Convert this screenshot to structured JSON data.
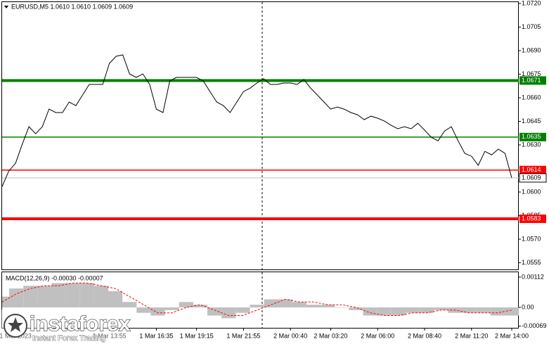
{
  "chart_data": [
    {
      "type": "line",
      "title": "EURUSD,M5  1.0610 1.0610 1.0609 1.0609",
      "color": "#000000",
      "grid": false,
      "categories": [
        null,
        null,
        "1 Mar 2023",
        null,
        null,
        null,
        null,
        null,
        null,
        null,
        null,
        null,
        null,
        null,
        null,
        null,
        "1 Mar 13:55",
        null,
        null,
        null,
        null,
        null,
        null,
        "1 Mar 16:35",
        null,
        null,
        null,
        null,
        null,
        "1 Mar 19:15",
        null,
        null,
        null,
        null,
        null,
        null,
        "1 Mar 21:55",
        null,
        null,
        null,
        null,
        null,
        null,
        "2 Mar 00:40",
        null,
        null,
        null,
        null,
        null,
        "2 Mar 03:20",
        null,
        null,
        null,
        null,
        null,
        null,
        "2 Mar 06:00",
        null,
        null,
        null,
        null,
        null,
        null,
        "2 Mar 08:40",
        null,
        null,
        null,
        null,
        null,
        null,
        "2 Mar 11:20",
        null,
        null,
        null,
        null,
        null,
        "2 Mar 14:00"
      ],
      "values": [
        1.06035,
        1.06134,
        1.06183,
        1.06304,
        1.06416,
        1.06371,
        1.06416,
        1.06528,
        1.06506,
        1.06506,
        1.06573,
        1.0655,
        1.06618,
        1.06685,
        1.06685,
        1.06685,
        1.06819,
        1.06864,
        1.06873,
        1.06752,
        1.0673,
        1.06752,
        1.06685,
        1.06528,
        1.06506,
        1.06707,
        1.0673,
        1.0673,
        1.0673,
        1.0673,
        1.06707,
        1.0664,
        1.06573,
        1.0655,
        1.06506,
        1.06573,
        1.0664,
        1.06662,
        1.06694,
        1.06721,
        1.06685,
        1.06685,
        1.06694,
        1.06694,
        1.06685,
        1.06716,
        1.06662,
        1.06618,
        1.06573,
        1.06528,
        1.06541,
        1.06528,
        1.06506,
        1.06492,
        1.06461,
        1.06483,
        1.0647,
        1.06452,
        1.06425,
        1.06403,
        1.06416,
        1.06403,
        1.06438,
        1.06394,
        1.06349,
        1.06326,
        1.06389,
        1.06416,
        1.06326,
        1.06246,
        1.06228,
        1.0617,
        1.06259,
        1.06237,
        1.06273,
        1.06246,
        1.0609
      ],
      "ylim": [
        1.05503,
        1.07209
      ],
      "yticks": [
        {
          "value": 1.072,
          "label": "1.0720"
        },
        1.0705,
        {
          "value": 1.069,
          "label": "1.0690"
        },
        1.0675,
        {
          "value": 1.066,
          "label": "1.0660"
        },
        1.0645,
        {
          "value": 1.063,
          "label": "1.0630"
        },
        {
          "value": 1.06,
          "label": "1.0600"
        },
        1.0585,
        {
          "value": 1.057,
          "label": "1.0570"
        },
        1.0555
      ],
      "levels": [
        {
          "value": 1.0671,
          "color": "#008000",
          "style": "thick"
        },
        {
          "value": 1.0635,
          "color": "#008000",
          "style": "thin"
        },
        {
          "value": 1.0614,
          "color": "#ff0000",
          "style": "thin"
        },
        {
          "value": 1.0583,
          "color": "#ff0000",
          "style": "thick"
        }
      ],
      "bid": 1.0609
    },
    {
      "type": "bar",
      "title": "MACD(12,26,9) -0.00030 -0.00007",
      "series": [
        {
          "type": "bar",
          "color": "#c0c0c0",
          "values": [
            0.0004,
            0.0007,
            0.0008,
            0.0008,
            0.0009,
            0.0009,
            0.0009,
            0.0008,
            0.0006,
            0.0002,
            -0.0002,
            -0.0003,
            -0.0001,
            0.0002,
            0.0001,
            -0.0003,
            -0.0004,
            -0.0002,
            0.0001,
            0.0003,
            0.0003,
            0.0002,
            0.0001,
            0.0001,
            0,
            -0.0001,
            -0.0003,
            -0.0003,
            -0.0003,
            -0.0002,
            -0.0002,
            -0.0001,
            -0.0002,
            -0.0002,
            -0.0002,
            -0.0003,
            -0.0003
          ]
        },
        {
          "type": "line",
          "color": "#ff0000",
          "values": [
            0.0002,
            0.0005,
            0.0007,
            0.0008,
            0.0008,
            0.0009,
            0.0009,
            0.0008,
            0.0007,
            0.0004,
            0.0001,
            -0.0002,
            -0.0002,
            0,
            0.0001,
            -0.0001,
            -0.0003,
            -0.0003,
            -0.0001,
            0.0001,
            0.0003,
            0.0002,
            0.0002,
            0.0001,
            0.0001,
            0,
            -0.0002,
            -0.0003,
            -0.0003,
            -0.0002,
            -0.0002,
            -0.0001,
            -0.0001,
            -0.0002,
            -0.0002,
            -0.0002,
            -0.0001
          ]
        }
      ],
      "ylim": [
        -0.00078,
        0.0013
      ],
      "yticks": [
        0.00112,
        {
          "value": 0,
          "label": "0.00"
        },
        -0.00069
      ]
    }
  ],
  "watermark": {
    "brand": "instaforex",
    "tagline": "Instant Forex Trading"
  }
}
